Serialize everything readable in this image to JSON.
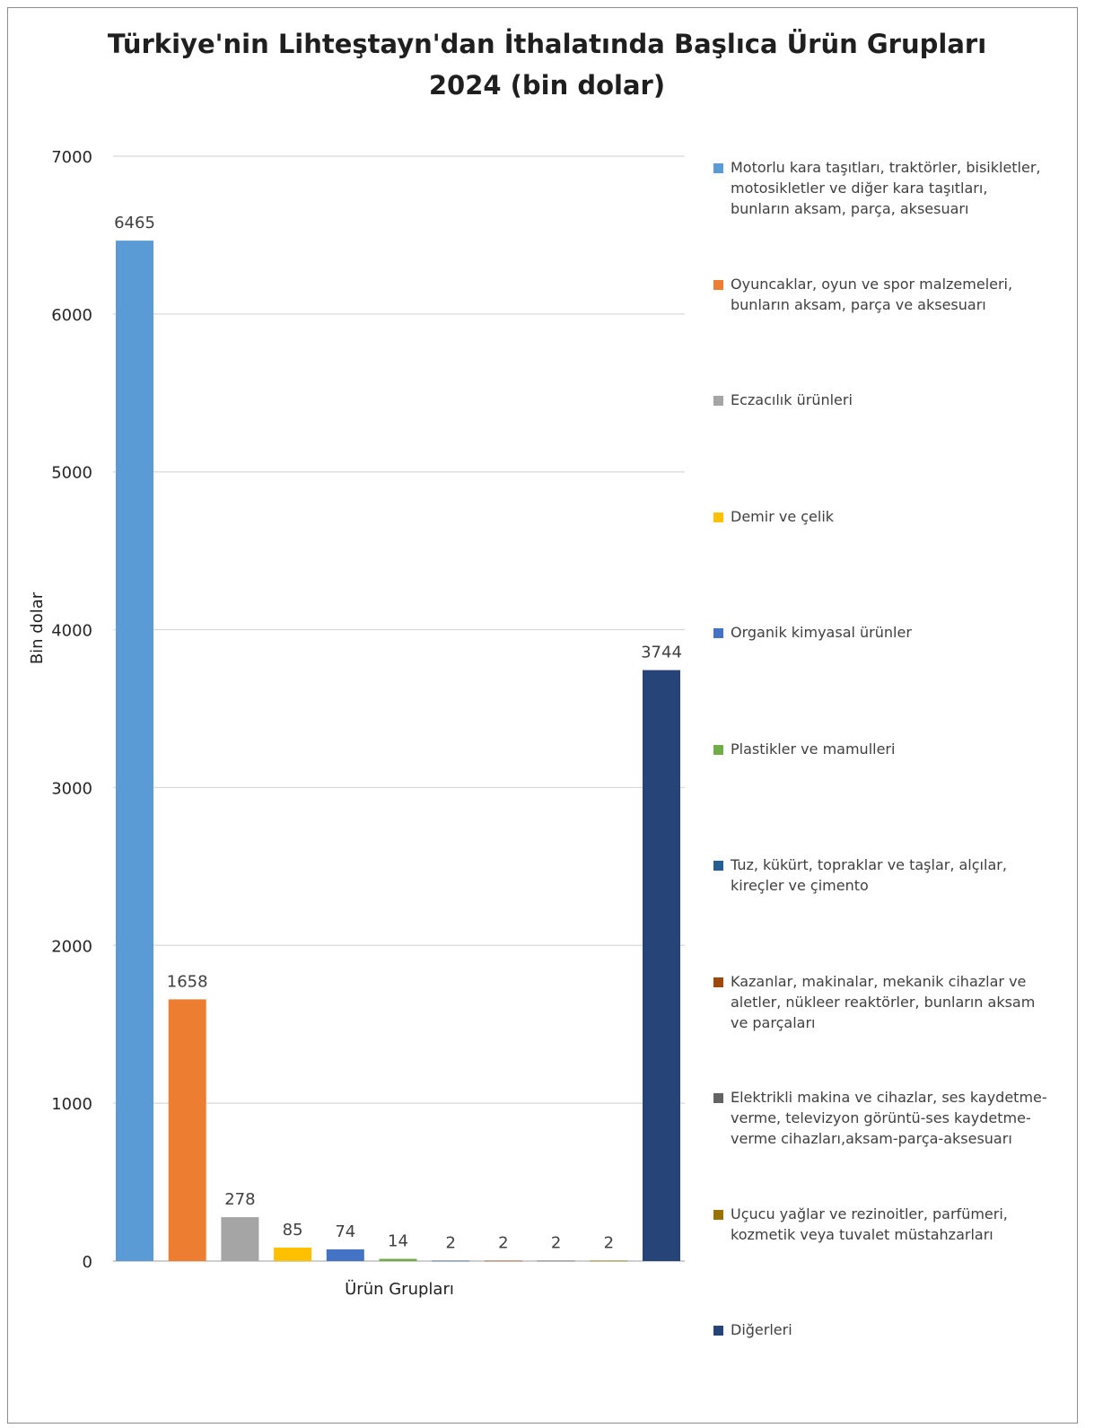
{
  "title_lines": [
    "Türkiye'nin Lihteştayn'dan İthalatında Başlıca Ürün Grupları",
    "2024 (bin dolar)"
  ],
  "chart_data": {
    "type": "bar",
    "title": "Türkiye'nin Lihteştayn'dan İthalatında Başlıca Ürün Grupları 2024 (bin dolar)",
    "xlabel": "Ürün Grupları",
    "ylabel": "Bin dolar",
    "ylim": [
      0,
      7000
    ],
    "yticks": [
      0,
      1000,
      2000,
      3000,
      4000,
      5000,
      6000,
      7000
    ],
    "grid": true,
    "legend_position": "right",
    "categories": [
      "Ürün Grupları"
    ],
    "series": [
      {
        "name": "Motorlu kara taşıtları, traktörler, bisikletler, motosikletler ve diğer kara taşıtları, bunların aksam, parça, aksesuarı",
        "values": [
          6465
        ],
        "color": "#5b9bd5"
      },
      {
        "name": "Oyuncaklar, oyun ve spor malzemeleri, bunların aksam, parça ve aksesuarı",
        "values": [
          1658
        ],
        "color": "#ed7d31"
      },
      {
        "name": "Eczacılık ürünleri",
        "values": [
          278
        ],
        "color": "#a5a5a5"
      },
      {
        "name": "Demir ve çelik",
        "values": [
          85
        ],
        "color": "#ffc000"
      },
      {
        "name": "Organik kimyasal ürünler",
        "values": [
          74
        ],
        "color": "#4472c4"
      },
      {
        "name": "Plastikler ve mamulleri",
        "values": [
          14
        ],
        "color": "#70ad47"
      },
      {
        "name": "Tuz, kükürt, topraklar ve taşlar, alçılar, kireçler ve çimento",
        "values": [
          2
        ],
        "color": "#255e91"
      },
      {
        "name": "Kazanlar, makinalar, mekanik cihazlar ve aletler, nükleer reaktörler, bunların aksam ve parçaları",
        "values": [
          2
        ],
        "color": "#9e480e"
      },
      {
        "name": "Elektrikli makina ve cihazlar, ses kaydetme-verme, televizyon görüntü-ses kaydetme-verme cihazları,aksam-parça-aksesuarı",
        "values": [
          2
        ],
        "color": "#636363"
      },
      {
        "name": "Uçucu yağlar ve rezinoitler, parfümeri, kozmetik veya tuvalet müstahzarları",
        "values": [
          2
        ],
        "color": "#997300"
      },
      {
        "name": "Diğerleri",
        "values": [
          3744
        ],
        "color": "#264478"
      }
    ]
  },
  "legend_lines": [
    [
      "Motorlu kara taşıtları, traktörler, bisikletler,",
      "motosikletler ve diğer kara taşıtları,",
      "bunların aksam, parça, aksesuarı"
    ],
    [
      "Oyuncaklar, oyun ve spor malzemeleri,",
      "bunların aksam, parça ve aksesuarı"
    ],
    [
      "Eczacılık ürünleri"
    ],
    [
      "Demir ve çelik"
    ],
    [
      "Organik kimyasal ürünler"
    ],
    [
      "Plastikler ve mamulleri"
    ],
    [
      "Tuz, kükürt, topraklar ve taşlar, alçılar,",
      "kireçler ve çimento"
    ],
    [
      "Kazanlar, makinalar, mekanik cihazlar ve",
      "aletler, nükleer reaktörler, bunların aksam",
      "ve parçaları"
    ],
    [
      "Elektrikli makina ve cihazlar, ses kaydetme-",
      "verme, televizyon görüntü-ses kaydetme-",
      "verme cihazları,aksam-parça-aksesuarı"
    ],
    [
      "Uçucu yağlar ve rezinoitler, parfümeri,",
      "kozmetik veya tuvalet müstahzarları"
    ],
    [
      "Diğerleri"
    ]
  ]
}
